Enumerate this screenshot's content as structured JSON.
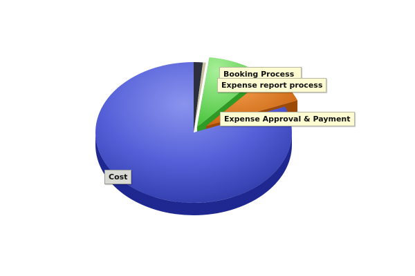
{
  "chart_data": {
    "type": "pie",
    "title": "",
    "three_d": true,
    "legend": "none",
    "slices": [
      {
        "label": "",
        "value": 1.5,
        "color": "#2c2f3d"
      },
      {
        "label": "Booking Process",
        "value": 0.5,
        "color": "#c9c2a0"
      },
      {
        "label": "Expense report process",
        "value": 9.5,
        "color": "#66dd55"
      },
      {
        "label": "Expense Approval & Payment",
        "value": 7.5,
        "color": "#e07a20"
      },
      {
        "label": "Cost",
        "value": 81.0,
        "color": "#4c58d0"
      }
    ]
  }
}
